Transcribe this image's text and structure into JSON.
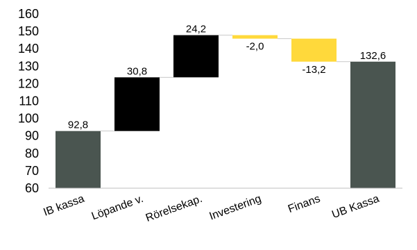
{
  "chart_data": {
    "type": "bar",
    "subtype": "waterfall",
    "title": "",
    "xlabel": "",
    "ylabel": "",
    "ylim": [
      60,
      160
    ],
    "yticks": [
      60,
      70,
      80,
      90,
      100,
      110,
      120,
      130,
      140,
      150,
      160
    ],
    "grid": false,
    "categories": [
      "IB kassa",
      "Löpande v.",
      "Rörelsekap.",
      "Investering",
      "Finans",
      "UB Kassa"
    ],
    "steps": [
      {
        "category": "IB kassa",
        "kind": "total",
        "value": 92.8,
        "label": "92,8",
        "color": "#4a5550"
      },
      {
        "category": "Löpande v.",
        "kind": "delta",
        "value": 30.8,
        "label": "30,8",
        "color": "#000000"
      },
      {
        "category": "Rörelsekap.",
        "kind": "delta",
        "value": 24.2,
        "label": "24,2",
        "color": "#000000"
      },
      {
        "category": "Investering",
        "kind": "delta",
        "value": -2.0,
        "label": "-2,0",
        "color": "#ffd93b"
      },
      {
        "category": "Finans",
        "kind": "delta",
        "value": -13.2,
        "label": "-13,2",
        "color": "#ffd93b"
      },
      {
        "category": "UB Kassa",
        "kind": "total",
        "value": 132.6,
        "label": "132,6",
        "color": "#4a5550"
      }
    ]
  }
}
